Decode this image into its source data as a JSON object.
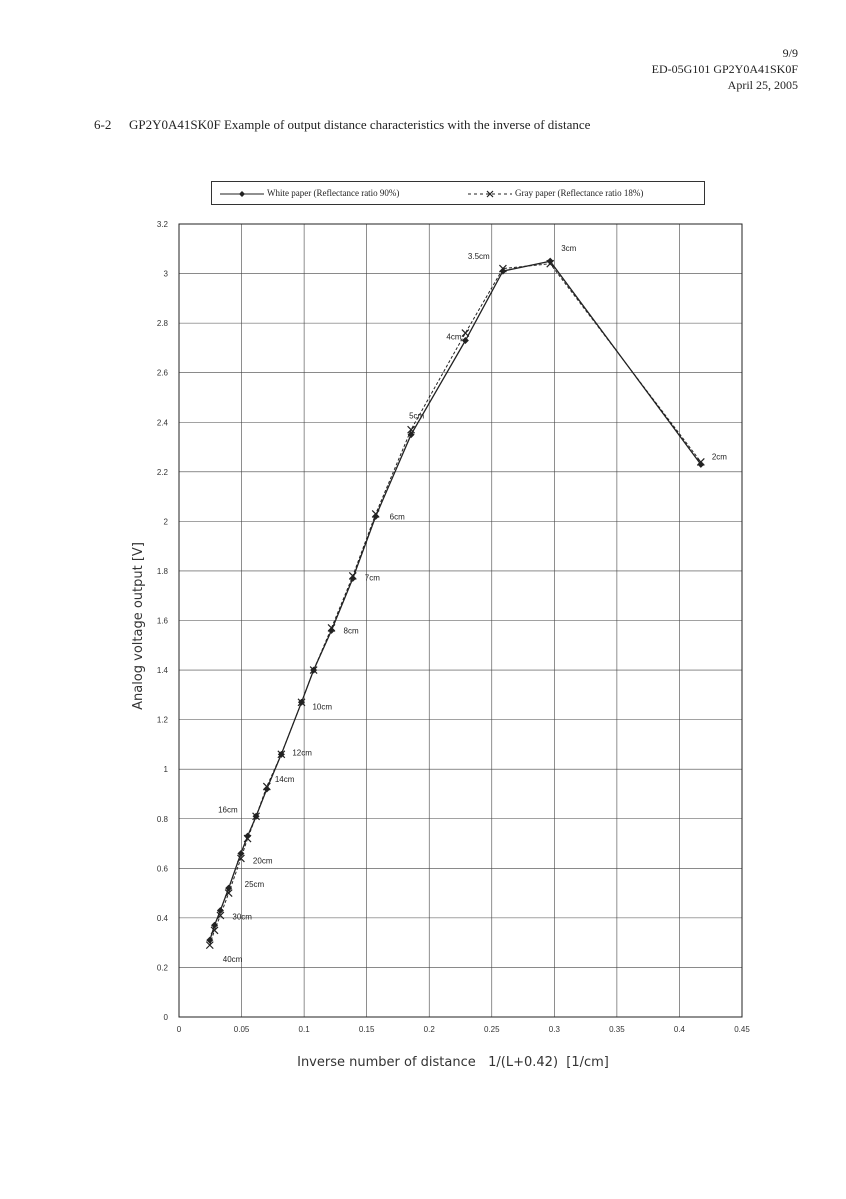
{
  "header": {
    "page": "9/9",
    "doc": "ED-05G101 GP2Y0A41SK0F",
    "date": "April 25, 2005"
  },
  "caption": {
    "number": "6-2",
    "text": "GP2Y0A41SK0F Example of output distance characteristics with the inverse of distance"
  },
  "chart_data": {
    "type": "line",
    "xlabel": "Inverse number of distance   1/(L+0.42)  [1/cm]",
    "ylabel": "Analog voltage output [V]",
    "xlim": [
      0,
      0.45
    ],
    "ylim": [
      0,
      3.2
    ],
    "x_ticks": [
      "0",
      "0.05",
      "0.1",
      "0.15",
      "0.2",
      "0.25",
      "0.3",
      "0.35",
      "0.4",
      "0.45"
    ],
    "y_ticks": [
      "0",
      "0.2",
      "0.4",
      "0.6",
      "0.8",
      "1",
      "1.2",
      "1.4",
      "1.6",
      "1.8",
      "2",
      "2.2",
      "2.4",
      "2.6",
      "2.8",
      "3",
      "3.2"
    ],
    "grid": true,
    "legend_position": "top",
    "series": [
      {
        "name": "White paper (Reflectance ratio 90%)",
        "style": "solid",
        "marker": "diamond",
        "color": "#222222",
        "x": [
          0.0246,
          0.0284,
          0.0331,
          0.0397,
          0.0495,
          0.0548,
          0.0616,
          0.0702,
          0.0818,
          0.0979,
          0.1076,
          0.1219,
          0.1389,
          0.1572,
          0.1855,
          0.2289,
          0.2589,
          0.2967,
          0.4171
        ],
        "y": [
          0.31,
          0.37,
          0.43,
          0.52,
          0.66,
          0.73,
          0.81,
          0.92,
          1.06,
          1.27,
          1.4,
          1.56,
          1.77,
          2.02,
          2.35,
          2.73,
          3.01,
          3.05,
          2.23
        ]
      },
      {
        "name": "Gray paper  (Reflectance ratio 18%)",
        "style": "dashed",
        "marker": "x",
        "color": "#222222",
        "x": [
          0.0246,
          0.0284,
          0.0331,
          0.0397,
          0.0495,
          0.0548,
          0.0616,
          0.0702,
          0.0818,
          0.0979,
          0.1076,
          0.1219,
          0.1389,
          0.1572,
          0.1855,
          0.2289,
          0.2589,
          0.2967,
          0.4171
        ],
        "y": [
          0.29,
          0.35,
          0.41,
          0.5,
          0.64,
          0.72,
          0.81,
          0.93,
          1.06,
          1.27,
          1.4,
          1.57,
          1.78,
          2.03,
          2.37,
          2.76,
          3.02,
          3.04,
          2.24
        ]
      }
    ],
    "point_labels": [
      {
        "text": "40cm",
        "x": 0.0246,
        "y": 0.31
      },
      {
        "text": "30cm",
        "x": 0.0331,
        "y": 0.43
      },
      {
        "text": "25cm",
        "x": 0.0397,
        "y": 0.52
      },
      {
        "text": "20cm",
        "x": 0.0495,
        "y": 0.66
      },
      {
        "text": "16cm",
        "x": 0.0616,
        "y": 0.81
      },
      {
        "text": "14cm",
        "x": 0.0702,
        "y": 0.92
      },
      {
        "text": "12cm",
        "x": 0.0818,
        "y": 1.06
      },
      {
        "text": "10cm",
        "x": 0.0979,
        "y": 1.27
      },
      {
        "text": "8cm",
        "x": 0.1219,
        "y": 1.56
      },
      {
        "text": "7cm",
        "x": 0.1389,
        "y": 1.77
      },
      {
        "text": "6cm",
        "x": 0.1572,
        "y": 2.02
      },
      {
        "text": "5cm",
        "x": 0.1855,
        "y": 2.35
      },
      {
        "text": "4cm",
        "x": 0.2289,
        "y": 2.73
      },
      {
        "text": "3.5cm",
        "x": 0.2589,
        "y": 3.01
      },
      {
        "text": "3cm",
        "x": 0.2967,
        "y": 3.05
      },
      {
        "text": "2cm",
        "x": 0.4171,
        "y": 2.23
      }
    ]
  }
}
